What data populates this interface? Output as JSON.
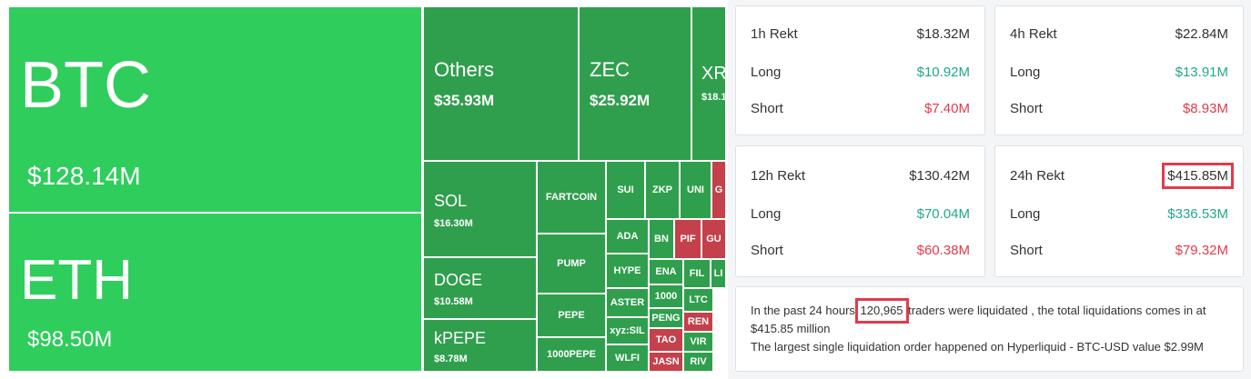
{
  "treemap": {
    "tiles": [
      {
        "label": "BTC",
        "value": "$128.14M"
      },
      {
        "label": "ETH",
        "value": "$98.50M"
      },
      {
        "label": "Others",
        "value": "$35.93M"
      },
      {
        "label": "ZEC",
        "value": "$25.92M"
      },
      {
        "label": "XR",
        "value": "$18.1"
      },
      {
        "label": "SOL",
        "value": "$16.30M"
      },
      {
        "label": "DOGE",
        "value": "$10.58M"
      },
      {
        "label": "kPEPE",
        "value": "$8.78M"
      },
      {
        "label": "FARTCOIN"
      },
      {
        "label": "PUMP"
      },
      {
        "label": "PEPE"
      },
      {
        "label": "1000PEPE"
      },
      {
        "label": "SUI"
      },
      {
        "label": "ZKP"
      },
      {
        "label": "UNI"
      },
      {
        "label": "G"
      },
      {
        "label": "ADA"
      },
      {
        "label": "HYPE"
      },
      {
        "label": "ASTER"
      },
      {
        "label": "xyz:SIL"
      },
      {
        "label": "WLFI"
      },
      {
        "label": "BN"
      },
      {
        "label": "PIF"
      },
      {
        "label": "GU"
      },
      {
        "label": "ENA"
      },
      {
        "label": "1000"
      },
      {
        "label": "PENG"
      },
      {
        "label": "TAO"
      },
      {
        "label": "JASN"
      },
      {
        "label": "FIL"
      },
      {
        "label": "LI"
      },
      {
        "label": "LTC"
      },
      {
        "label": "REN"
      },
      {
        "label": "VIR"
      },
      {
        "label": "RIV"
      }
    ]
  },
  "cards": [
    {
      "title": "1h Rekt",
      "total": "$18.32M",
      "long_label": "Long",
      "long": "$10.92M",
      "short_label": "Short",
      "short": "$7.40M"
    },
    {
      "title": "4h Rekt",
      "total": "$22.84M",
      "long_label": "Long",
      "long": "$13.91M",
      "short_label": "Short",
      "short": "$8.93M"
    },
    {
      "title": "12h Rekt",
      "total": "$130.42M",
      "long_label": "Long",
      "long": "$70.04M",
      "short_label": "Short",
      "short": "$60.38M"
    },
    {
      "title": "24h Rekt",
      "total": "$415.85M",
      "long_label": "Long",
      "long": "$336.53M",
      "short_label": "Short",
      "short": "$79.32M"
    }
  ],
  "summary": {
    "before": "In the past 24 hours",
    "count": "120,965",
    "after": "traders were liquidated , the total liquidations comes in at $415.85 million",
    "line2": "The largest single liquidation order happened on Hyperliquid - BTC-USD value $2.99M"
  }
}
